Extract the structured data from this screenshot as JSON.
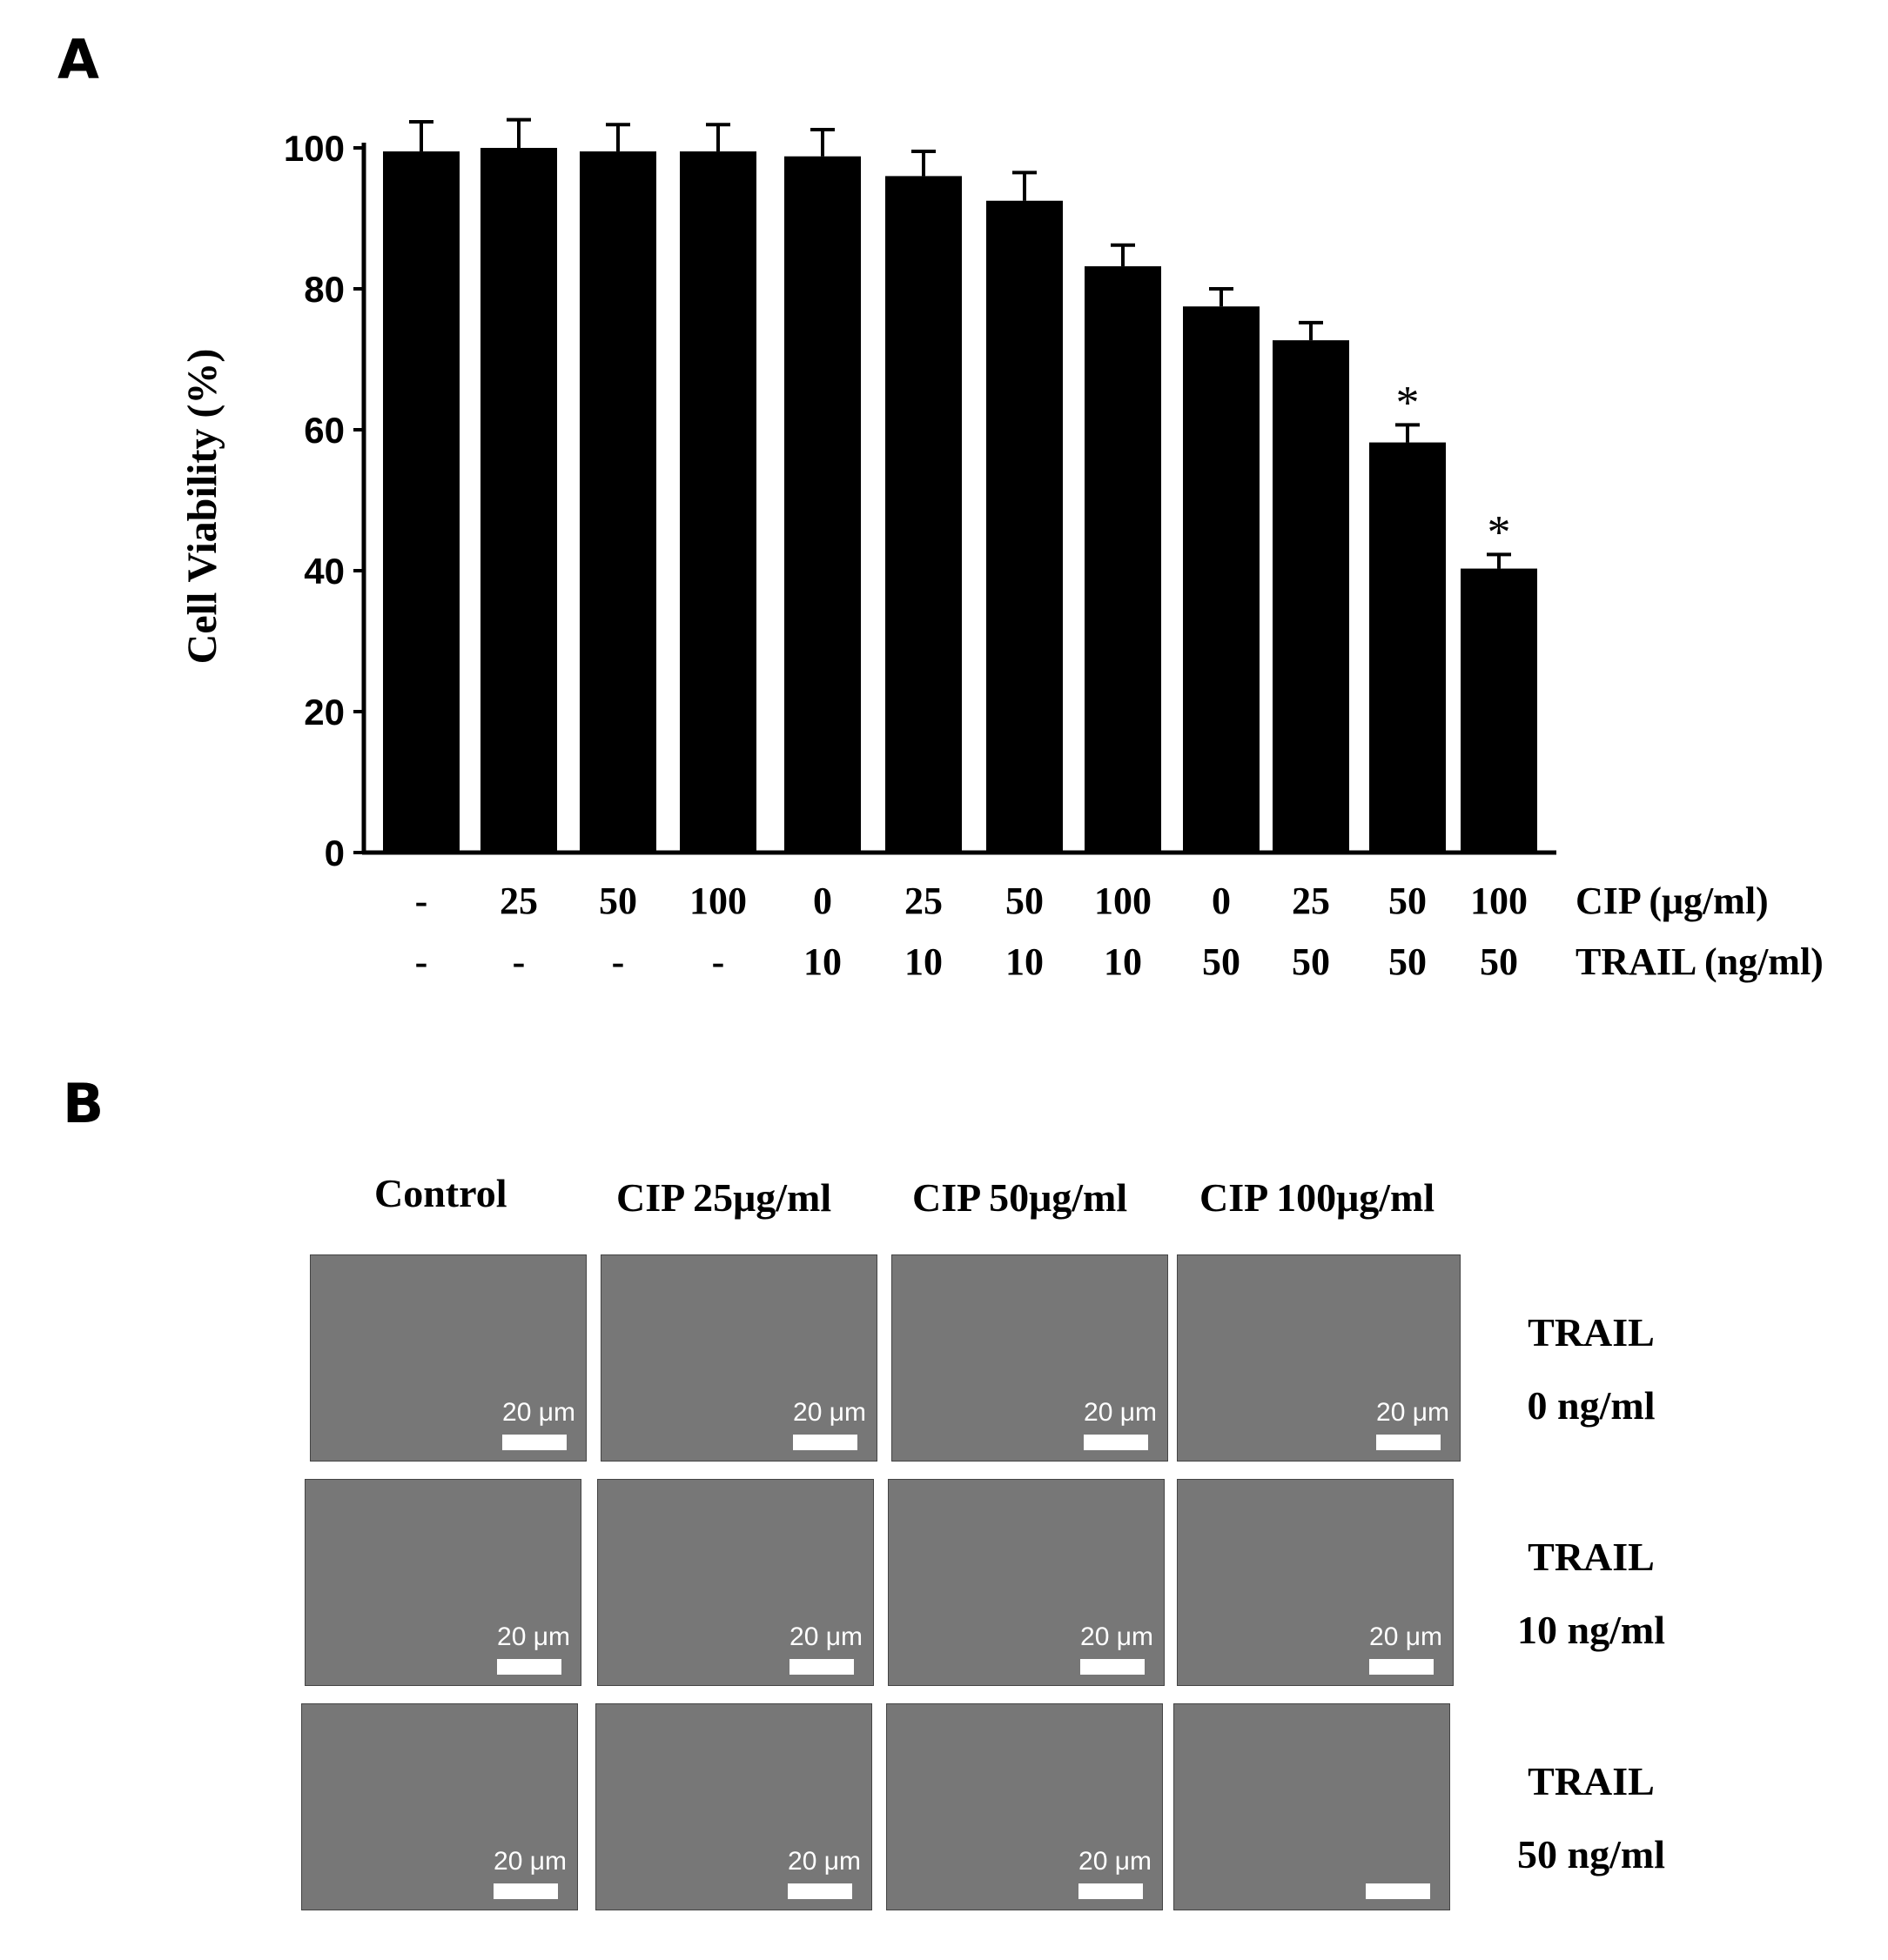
{
  "panels": {
    "a": "A",
    "b": "B"
  },
  "chart_data": {
    "type": "bar",
    "ylabel": "Cell Viability  (%)",
    "ylim": [
      0,
      100
    ],
    "yticks": [
      0,
      20,
      40,
      60,
      80,
      100
    ],
    "values": [
      99.5,
      100,
      99.5,
      99.5,
      98.8,
      96,
      92.5,
      83.2,
      77.5,
      72.7,
      58.2,
      40.3
    ],
    "errors": [
      4.2,
      4,
      3.8,
      3.8,
      3.8,
      3.5,
      4,
      3,
      2.5,
      2.5,
      2.5,
      2
    ],
    "significant": [
      "",
      "",
      "",
      "",
      "",
      "",
      "",
      "",
      "",
      "",
      "*",
      "*"
    ],
    "conditions": [
      {
        "label": "CIP (μg/ml)",
        "values": [
          "-",
          "25",
          "50",
          "100",
          "0",
          "25",
          "50",
          "100",
          "0",
          "25",
          "50",
          "100"
        ]
      },
      {
        "label": "TRAIL (ng/ml)",
        "values": [
          "-",
          "-",
          "-",
          "-",
          "10",
          "10",
          "10",
          "10",
          "50",
          "50",
          "50",
          "50"
        ]
      }
    ],
    "bar_color": "#000000"
  },
  "micrographs": {
    "columns": [
      "Control",
      "CIP 25μg/ml",
      "CIP 50μg/ml",
      "CIP 100μg/ml"
    ],
    "rows": [
      {
        "line1": "TRAIL",
        "line2": "0 ng/ml"
      },
      {
        "line1": "TRAIL",
        "line2": "10 ng/ml"
      },
      {
        "line1": "TRAIL",
        "line2": "50 ng/ml"
      }
    ],
    "scale_label": "20 μm"
  }
}
